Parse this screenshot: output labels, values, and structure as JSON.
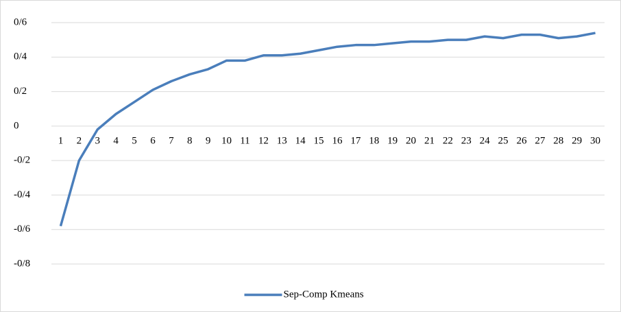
{
  "chart_data": {
    "type": "line",
    "categories": [
      "1",
      "2",
      "3",
      "4",
      "5",
      "6",
      "7",
      "8",
      "9",
      "10",
      "11",
      "12",
      "13",
      "14",
      "15",
      "16",
      "17",
      "18",
      "19",
      "20",
      "21",
      "22",
      "23",
      "24",
      "25",
      "26",
      "27",
      "28",
      "29",
      "30"
    ],
    "series": [
      {
        "name": "Sep-Comp Kmeans",
        "color": "#4a7ebb",
        "values": [
          -0.58,
          -0.2,
          -0.02,
          0.07,
          0.14,
          0.21,
          0.26,
          0.3,
          0.33,
          0.38,
          0.38,
          0.41,
          0.41,
          0.42,
          0.44,
          0.46,
          0.47,
          0.47,
          0.48,
          0.49,
          0.49,
          0.5,
          0.5,
          0.52,
          0.51,
          0.53,
          0.53,
          0.51,
          0.52,
          0.54
        ]
      }
    ],
    "ylim": [
      -0.8,
      0.6
    ],
    "yticks": [
      {
        "value": -0.8,
        "label": "-0/8"
      },
      {
        "value": -0.6,
        "label": "-0/6"
      },
      {
        "value": -0.4,
        "label": "-0/4"
      },
      {
        "value": -0.2,
        "label": "-0/2"
      },
      0,
      {
        "value": 0.2,
        "label": "0/2"
      },
      {
        "value": 0.4,
        "label": "0/4"
      },
      {
        "value": 0.6,
        "label": "0/6"
      }
    ],
    "grid": true,
    "legend": "bottom"
  }
}
